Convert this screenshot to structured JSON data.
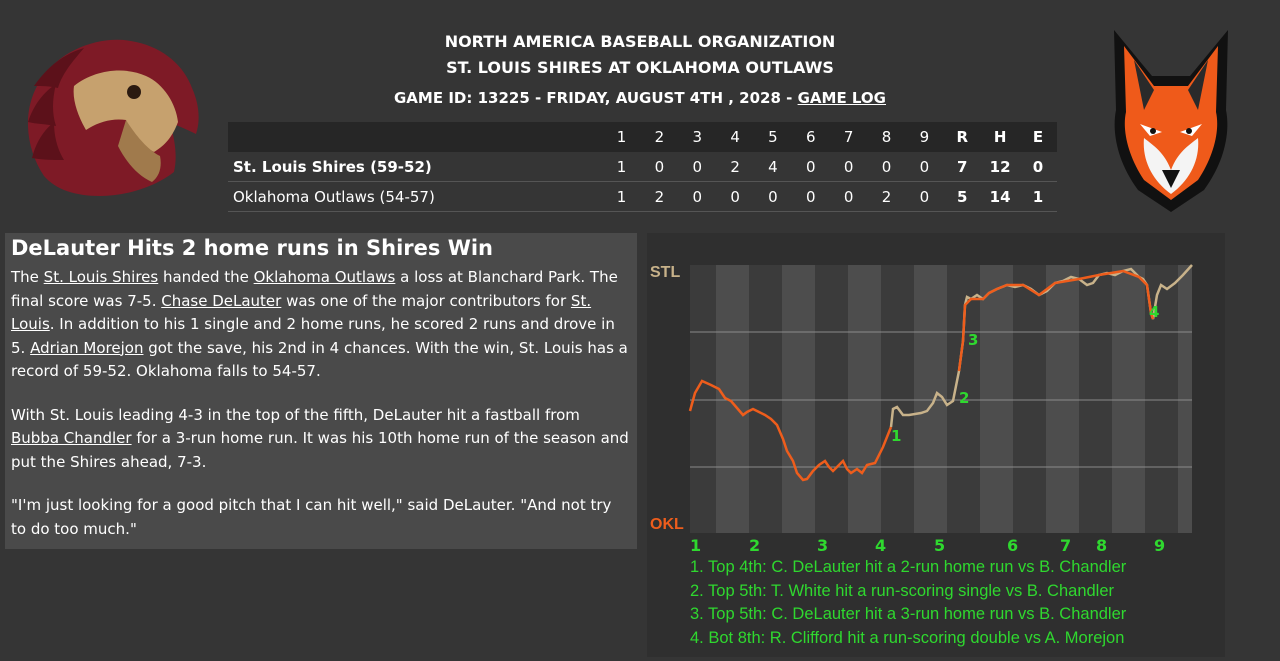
{
  "header": {
    "org": "NORTH AMERICA BASEBALL ORGANIZATION",
    "matchup": "ST. LOUIS SHIRES AT OKLAHOMA OUTLAWS",
    "game_info": "GAME ID: 13225 - FRIDAY, AUGUST 4TH , 2028 - ",
    "game_log_link": "GAME LOG"
  },
  "linescore": {
    "headers": [
      "1",
      "2",
      "3",
      "4",
      "5",
      "6",
      "7",
      "8",
      "9",
      "R",
      "H",
      "E"
    ],
    "rows": [
      {
        "team": "St. Louis Shires (59-52)",
        "cells": [
          "1",
          "0",
          "0",
          "2",
          "4",
          "0",
          "0",
          "0",
          "0",
          "7",
          "12",
          "0"
        ]
      },
      {
        "team": "Oklahoma Outlaws (54-57)",
        "cells": [
          "1",
          "2",
          "0",
          "0",
          "0",
          "0",
          "0",
          "2",
          "0",
          "5",
          "14",
          "1"
        ]
      }
    ]
  },
  "story": {
    "headline": "DeLauter Hits 2 home runs in Shires Win",
    "p1": {
      "t1": "The ",
      "l1": "St. Louis Shires",
      "t2": " handed the ",
      "l2": "Oklahoma Outlaws",
      "t3": " a loss at Blanchard Park. The final score was 7-5. ",
      "l3": "Chase DeLauter",
      "t4": " was one of the major contributors for ",
      "l4": "St. Louis",
      "t5": ". In addition to his 1 single and 2 home runs, he scored 2 runs and drove in 5. ",
      "l5": "Adrian Morejon",
      "t6": " got the save, his 2nd in 4 chances. With the win, St. Louis has a record of 59-52. Oklahoma falls to 54-57."
    },
    "p2": {
      "t1": "With St. Louis leading 4-3 in the top of the fifth, DeLauter hit a fastball from ",
      "l1": "Bubba Chandler",
      "t2": " for a 3-run home run. It was his 10th home run of the season and put the Shires ahead, 7-3."
    },
    "p3": "\"I'm just looking for a good pitch that I can hit well,\" said DeLauter. \"And not try to do too much.\""
  },
  "win_prob": {
    "top_label": "STL",
    "bottom_label": "OKL",
    "inning_labels": [
      "1",
      "2",
      "3",
      "4",
      "5",
      "6",
      "7",
      "8",
      "9"
    ],
    "event_markers": [
      "1",
      "2",
      "3",
      "4"
    ],
    "events": [
      "1. Top 4th: C. DeLauter hit a 2-run home run vs B. Chandler",
      "2. Top 5th: T. White hit a run-scoring single vs B. Chandler",
      "3. Top 5th: C. DeLauter hit a 3-run home run vs B. Chandler",
      "4. Bot 8th: R. Clifford hit a run-scoring double vs A. Morejon"
    ],
    "colors": {
      "stl": "#c8b28a",
      "okl": "#ee5d1c",
      "label": "#2fd82f"
    }
  }
}
